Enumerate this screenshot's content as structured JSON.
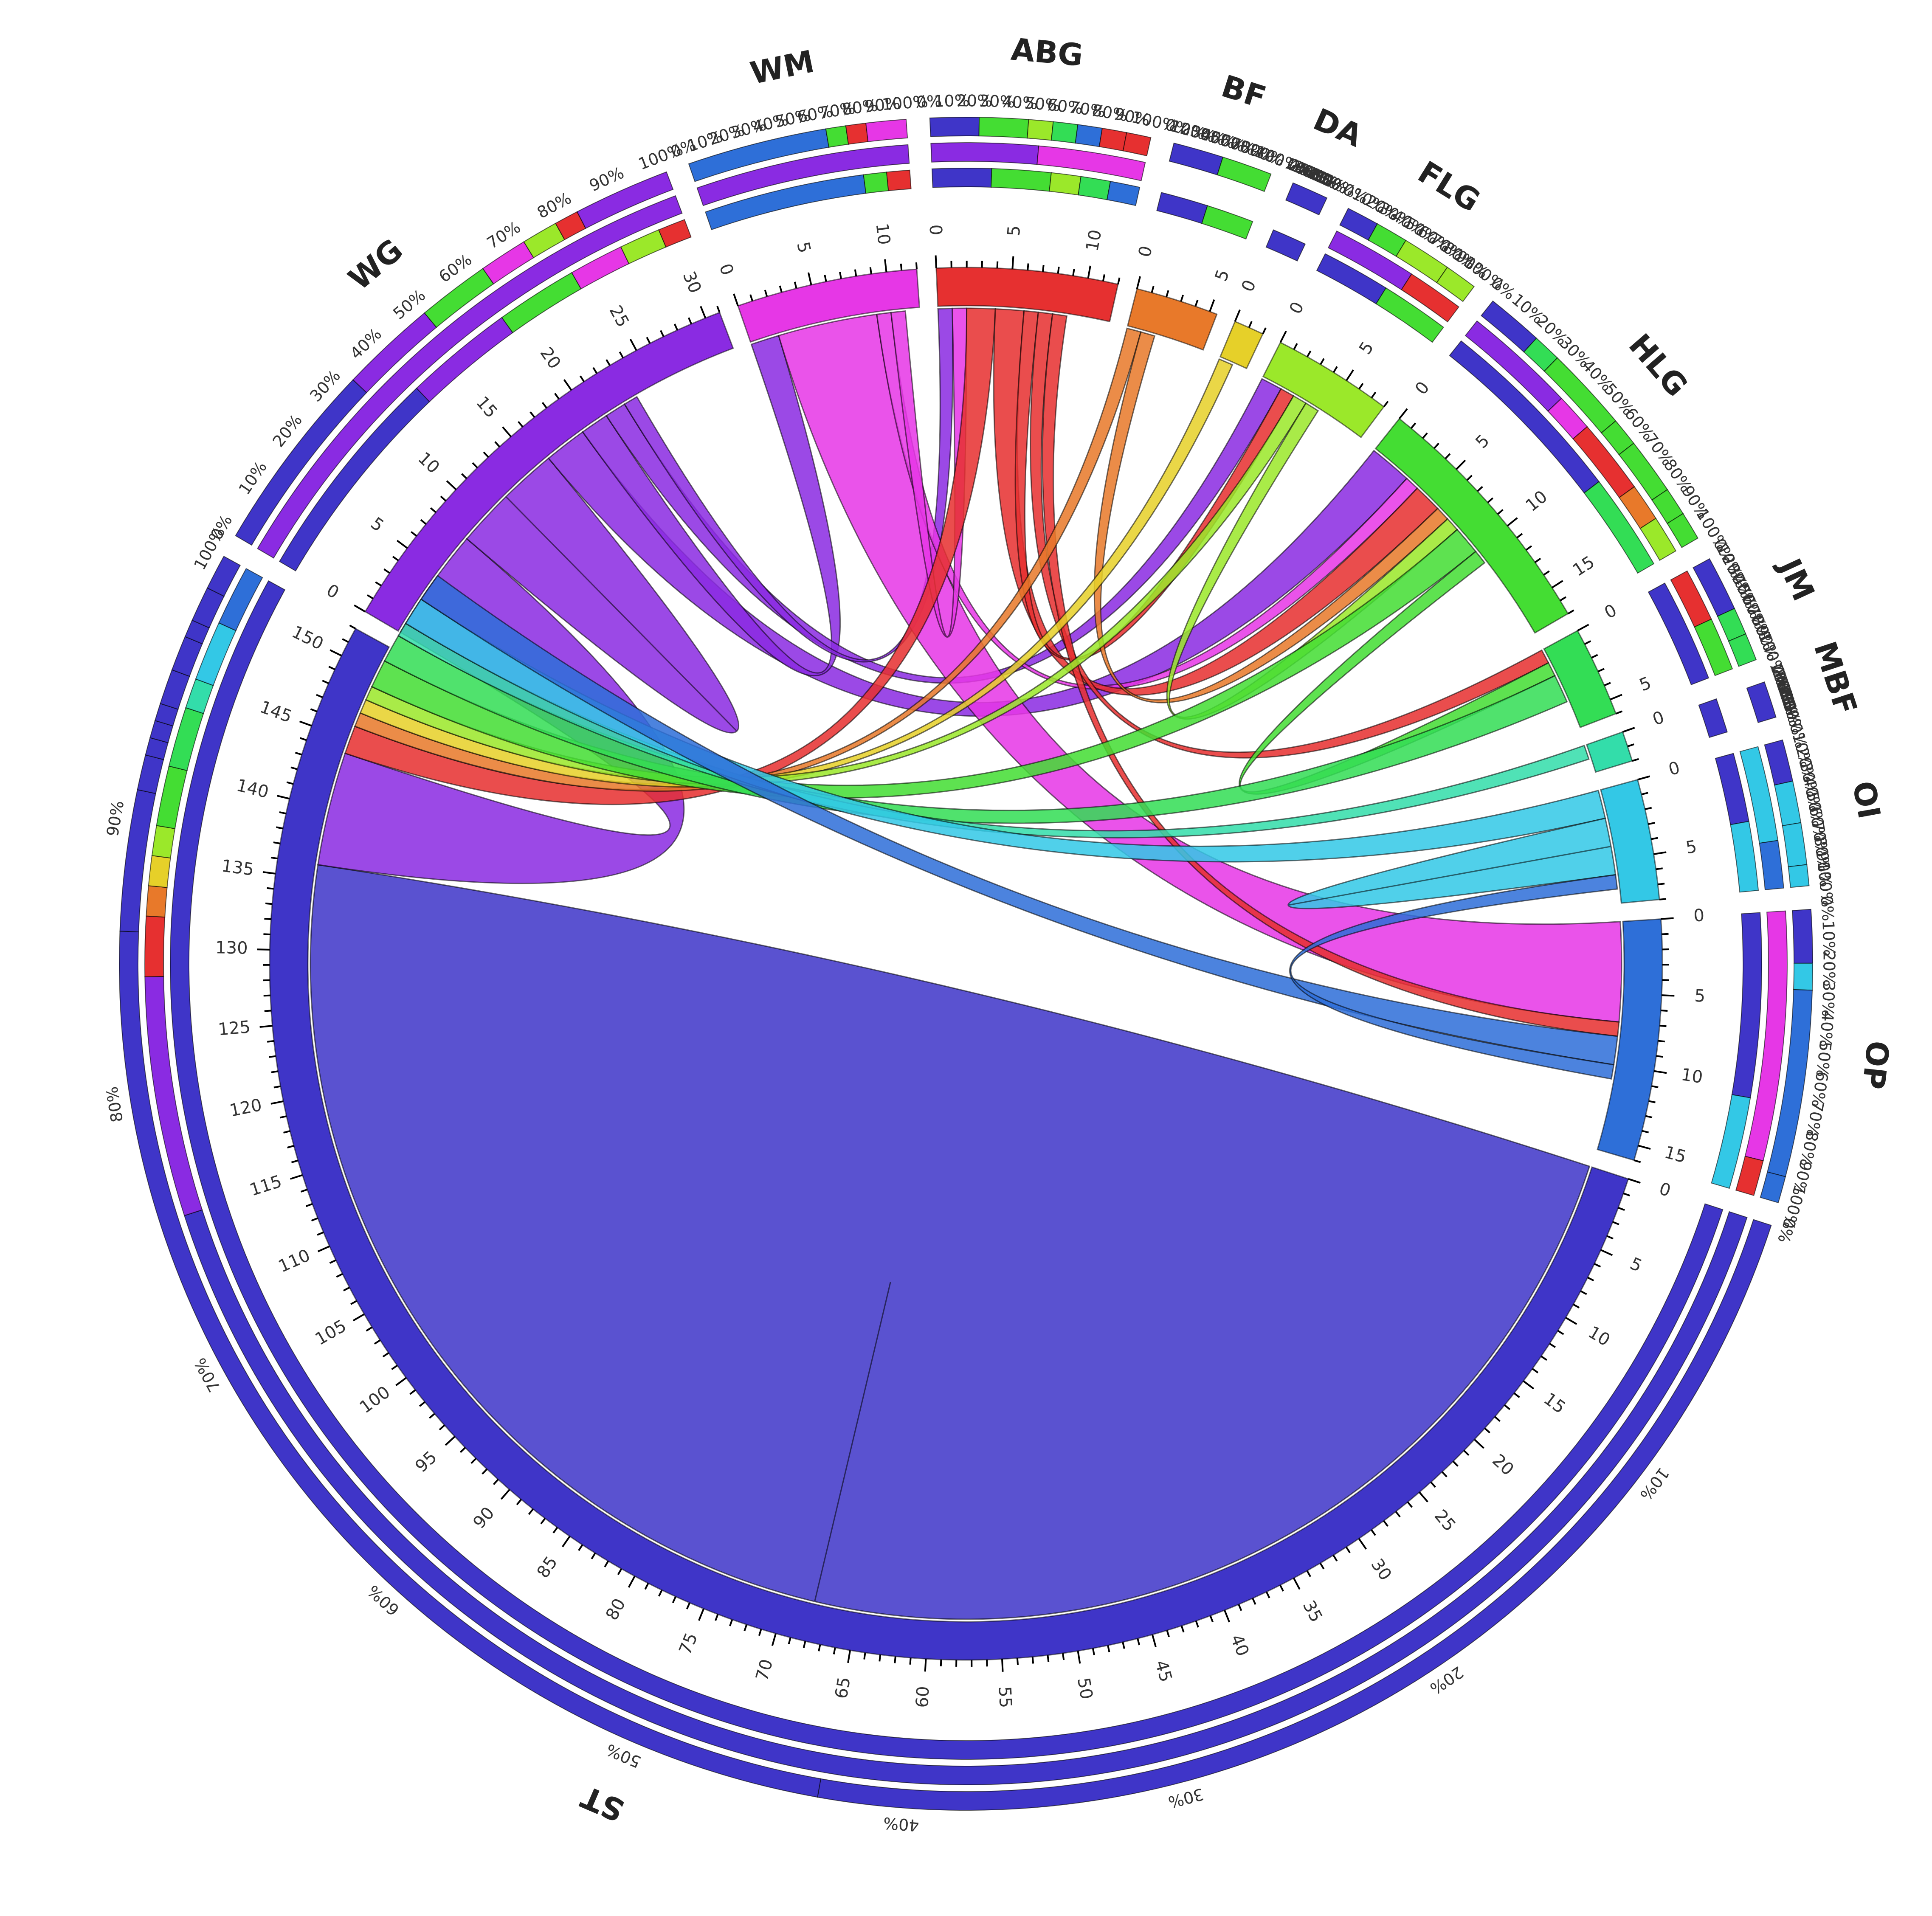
{
  "chart_data": {
    "type": "chord",
    "title": "",
    "groups": [
      {
        "id": "ST",
        "label": "ST",
        "total": 152,
        "color": "#3f35c8",
        "tick_step": 5
      },
      {
        "id": "WG",
        "label": "WG",
        "total": 31,
        "color": "#8a2be2",
        "tick_step": 5
      },
      {
        "id": "WM",
        "label": "WM",
        "total": 12,
        "color": "#e637e6",
        "tick_step": 5
      },
      {
        "id": "ABG",
        "label": "ABG",
        "total": 12,
        "color": "#e63030",
        "tick_step": 5
      },
      {
        "id": "BF",
        "label": "BF",
        "total": 5.5,
        "color": "#e8792a",
        "tick_step": 5
      },
      {
        "id": "DA",
        "label": "DA",
        "total": 2,
        "color": "#e6d029",
        "tick_step": 5
      },
      {
        "id": "FLG",
        "label": "FLG",
        "total": 8,
        "color": "#9be82a",
        "tick_step": 5
      },
      {
        "id": "HLG",
        "label": "HLG",
        "total": 17,
        "color": "#44dd33",
        "tick_step": 5
      },
      {
        "id": "JM",
        "label": "JM",
        "total": 6,
        "color": "#33dd55",
        "tick_step": 5
      },
      {
        "id": "MBF",
        "label": "MBF",
        "total": 2,
        "color": "#33ddaa",
        "tick_step": 5
      },
      {
        "id": "OI",
        "label": "OI",
        "total": 8,
        "color": "#33c8e6",
        "tick_step": 5
      },
      {
        "id": "OP",
        "label": "OP",
        "total": 16,
        "color": "#2e6fd8",
        "tick_step": 5
      }
    ],
    "flows": [
      {
        "source": "ST",
        "target": "ST",
        "value": 68
      },
      {
        "source": "WG",
        "target": "ST",
        "value": 8
      },
      {
        "source": "WG",
        "target": "WG",
        "value": 4
      },
      {
        "source": "WG",
        "target": "HLG",
        "value": 3
      },
      {
        "source": "WG",
        "target": "WM",
        "value": 2
      },
      {
        "source": "WG",
        "target": "FLG",
        "value": 1.5
      },
      {
        "source": "WG",
        "target": "ABG",
        "value": 1
      },
      {
        "source": "WM",
        "target": "OP",
        "value": 7
      },
      {
        "source": "WM",
        "target": "HLG",
        "value": 1
      },
      {
        "source": "WM",
        "target": "ABG",
        "value": 1
      },
      {
        "source": "ABG",
        "target": "ST",
        "value": 2
      },
      {
        "source": "ABG",
        "target": "HLG",
        "value": 2
      },
      {
        "source": "ABG",
        "target": "FLG",
        "value": 1
      },
      {
        "source": "ABG",
        "target": "JM",
        "value": 1
      },
      {
        "source": "ABG",
        "target": "OP",
        "value": 1
      },
      {
        "source": "BF",
        "target": "ST",
        "value": 1
      },
      {
        "source": "BF",
        "target": "HLG",
        "value": 1
      },
      {
        "source": "DA",
        "target": "ST",
        "value": 1
      },
      {
        "source": "FLG",
        "target": "ST",
        "value": 1
      },
      {
        "source": "FLG",
        "target": "HLG",
        "value": 1
      },
      {
        "source": "HLG",
        "target": "ST",
        "value": 2
      },
      {
        "source": "HLG",
        "target": "JM",
        "value": 1
      },
      {
        "source": "JM",
        "target": "ST",
        "value": 2
      },
      {
        "source": "MBF",
        "target": "ST",
        "value": 1
      },
      {
        "source": "OI",
        "target": "ST",
        "value": 2
      },
      {
        "source": "OI",
        "target": "OI",
        "value": 2
      },
      {
        "source": "OP",
        "target": "ST",
        "value": 2
      },
      {
        "source": "OP",
        "target": "OI",
        "value": 1
      }
    ],
    "percent_labels": [
      "0%",
      "10%",
      "20%",
      "30%",
      "40%",
      "50%",
      "60%",
      "70%",
      "80%",
      "90%",
      "100%"
    ]
  }
}
